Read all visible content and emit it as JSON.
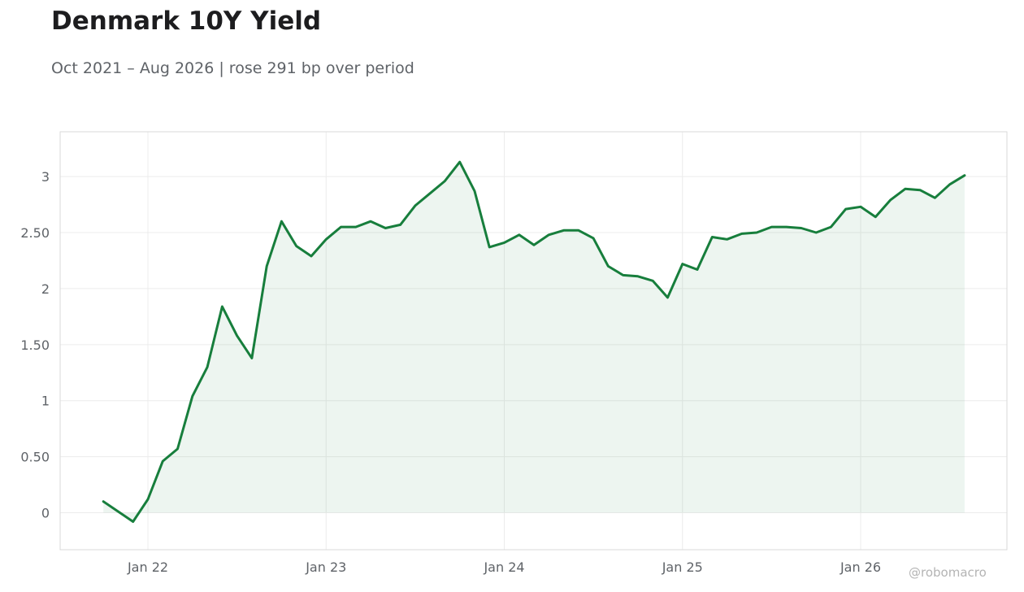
{
  "title": "Denmark 10Y Yield",
  "subtitle": "Oct 2021 – Aug 2026 | rose 291 bp over period",
  "watermark": "@robomacro",
  "colors": {
    "line": "#177e3c",
    "fill": "#177e3c",
    "grid": "#ececec",
    "frame": "#d9d9d9"
  },
  "chart_data": {
    "type": "area",
    "title": "Denmark 10Y Yield",
    "subtitle": "Oct 2021 – Aug 2026 | rose 291 bp over period",
    "xlabel": "",
    "ylabel": "",
    "grid": true,
    "ylim": [
      -0.33,
      3.4
    ],
    "yticks": [
      0,
      0.5,
      1,
      1.5,
      2,
      2.5,
      3
    ],
    "ytick_labels": [
      "0",
      "0.50",
      "1",
      "1.50",
      "2",
      "2.50",
      "3"
    ],
    "xticks": [
      "2022-01",
      "2023-01",
      "2024-01",
      "2025-01",
      "2026-01"
    ],
    "xtick_labels": [
      "Jan 22",
      "Jan 23",
      "Jan 24",
      "Jan 25",
      "Jan 26"
    ],
    "series": [
      {
        "x": [
          "2021-10",
          "2021-11",
          "2021-12",
          "2022-01",
          "2022-02",
          "2022-03",
          "2022-04",
          "2022-05",
          "2022-06",
          "2022-07",
          "2022-08",
          "2022-09",
          "2022-10",
          "2022-11",
          "2022-12",
          "2023-01",
          "2023-02",
          "2023-03",
          "2023-04",
          "2023-05",
          "2023-06",
          "2023-07",
          "2023-08",
          "2023-09",
          "2023-10",
          "2023-11",
          "2023-12",
          "2024-01",
          "2024-02",
          "2024-03",
          "2024-04",
          "2024-05",
          "2024-06",
          "2024-07",
          "2024-08",
          "2024-09",
          "2024-10",
          "2024-11",
          "2024-12",
          "2025-01",
          "2025-02",
          "2025-03",
          "2025-04",
          "2025-05",
          "2025-06",
          "2025-07",
          "2025-08",
          "2025-09",
          "2025-10",
          "2025-11",
          "2025-12",
          "2026-01",
          "2026-02",
          "2026-03",
          "2026-04",
          "2026-05",
          "2026-06",
          "2026-07",
          "2026-08"
        ],
        "values": [
          0.1,
          0.01,
          -0.08,
          0.12,
          0.46,
          0.57,
          1.04,
          1.3,
          1.84,
          1.58,
          1.38,
          2.2,
          2.6,
          2.38,
          2.29,
          2.44,
          2.55,
          2.55,
          2.6,
          2.54,
          2.57,
          2.74,
          2.85,
          2.96,
          3.13,
          2.87,
          2.37,
          2.41,
          2.48,
          2.39,
          2.48,
          2.52,
          2.52,
          2.45,
          2.2,
          2.12,
          2.11,
          2.07,
          1.92,
          2.22,
          2.17,
          2.46,
          2.44,
          2.49,
          2.5,
          2.55,
          2.55,
          2.54,
          2.5,
          2.55,
          2.71,
          2.73,
          2.64,
          2.79,
          2.89,
          2.88,
          2.81,
          2.93,
          3.01
        ]
      }
    ]
  }
}
